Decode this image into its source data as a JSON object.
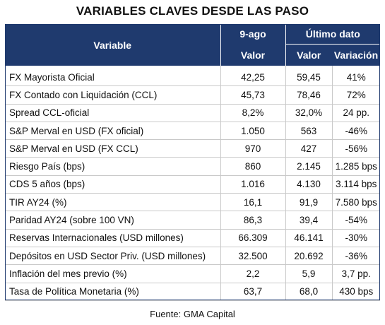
{
  "title": "VARIABLES CLAVES DESDE LAS PASO",
  "header": {
    "variable": "Variable",
    "col_9ago": "9-ago",
    "col_ultimo": "Último dato",
    "sub_valor_1": "Valor",
    "sub_valor_2": "Valor",
    "sub_variacion": "Variación"
  },
  "rows": [
    {
      "variable": "FX Mayorista Oficial",
      "v9ago": "42,25",
      "ultimo": "59,45",
      "variacion": "41%"
    },
    {
      "variable": "FX Contado con Liquidación (CCL)",
      "v9ago": "45,73",
      "ultimo": "78,46",
      "variacion": "72%"
    },
    {
      "variable": "Spread CCL-oficial",
      "v9ago": "8,2%",
      "ultimo": "32,0%",
      "variacion": "24 pp."
    },
    {
      "variable": "S&P Merval en USD (FX oficial)",
      "v9ago": "1.050",
      "ultimo": "563",
      "variacion": "-46%"
    },
    {
      "variable": "S&P Merval en USD (FX CCL)",
      "v9ago": "970",
      "ultimo": "427",
      "variacion": "-56%"
    },
    {
      "variable": "Riesgo País (bps)",
      "v9ago": "860",
      "ultimo": "2.145",
      "variacion": "1.285 bps"
    },
    {
      "variable": "CDS 5 años (bps)",
      "v9ago": "1.016",
      "ultimo": "4.130",
      "variacion": "3.114 bps"
    },
    {
      "variable": "TIR AY24 (%)",
      "v9ago": "16,1",
      "ultimo": "91,9",
      "variacion": "7.580 bps"
    },
    {
      "variable": "Paridad AY24 (sobre 100 VN)",
      "v9ago": "86,3",
      "ultimo": "39,4",
      "variacion": "-54%"
    },
    {
      "variable": "Reservas Internacionales (USD millones)",
      "v9ago": "66.309",
      "ultimo": "46.141",
      "variacion": "-30%"
    },
    {
      "variable": "Depósitos en USD Sector Priv. (USD millones)",
      "v9ago": "32.500",
      "ultimo": "20.692",
      "variacion": "-36%"
    },
    {
      "variable": "Inflación del mes previo (%)",
      "v9ago": "2,2",
      "ultimo": "5,9",
      "variacion": "3,7 pp."
    },
    {
      "variable": "Tasa de Política Monetaria (%)",
      "v9ago": "63,7",
      "ultimo": "68,0",
      "variacion": "430 bps"
    }
  ],
  "source": "Fuente: GMA Capital"
}
